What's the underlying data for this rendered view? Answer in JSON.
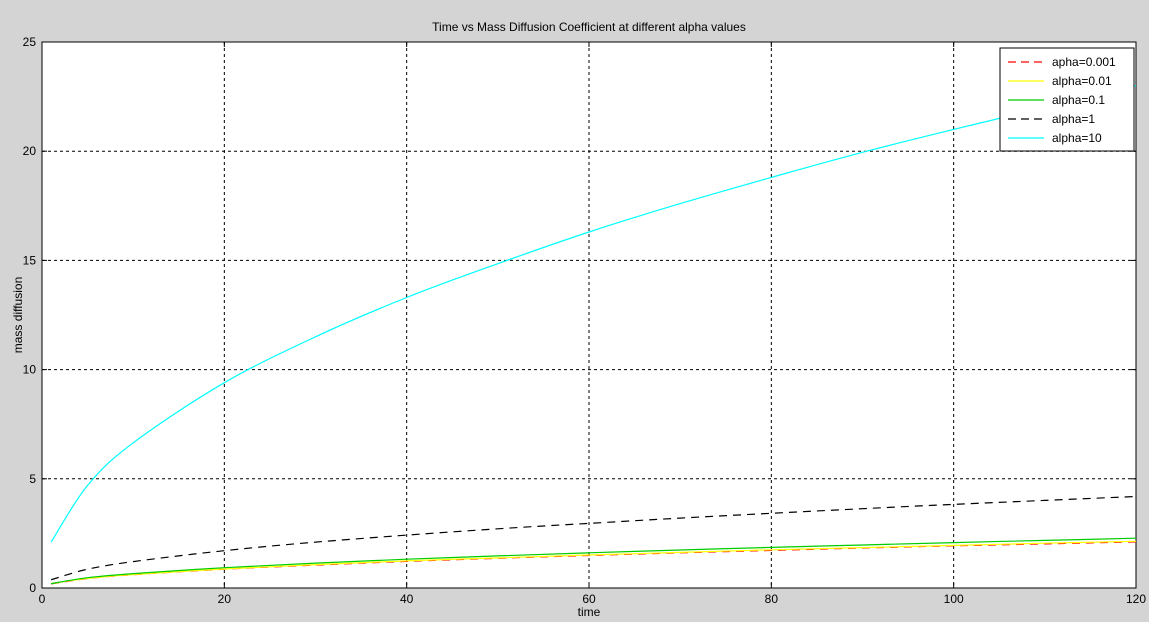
{
  "chart_data": {
    "type": "line",
    "title": "Time vs Mass Diffusion Coefficient at different alpha values",
    "xlabel": "time",
    "ylabel": "mass diffusion",
    "xlim": [
      0,
      120
    ],
    "ylim": [
      0,
      25
    ],
    "xticks": [
      0,
      20,
      40,
      60,
      80,
      100,
      120
    ],
    "yticks": [
      0,
      5,
      10,
      15,
      20,
      25
    ],
    "grid": true,
    "legend_position": "top-right",
    "x": [
      1,
      5,
      10,
      20,
      30,
      40,
      50,
      60,
      70,
      80,
      90,
      100,
      110,
      120
    ],
    "series": [
      {
        "name": "apha=0.001",
        "color": "#ff0000",
        "dash": "dashed",
        "values": [
          0.19,
          0.43,
          0.61,
          0.86,
          1.05,
          1.22,
          1.36,
          1.49,
          1.61,
          1.72,
          1.83,
          1.93,
          2.02,
          2.11
        ]
      },
      {
        "name": "alpha=0.01",
        "color": "#ffff00",
        "dash": "solid",
        "values": [
          0.2,
          0.44,
          0.62,
          0.87,
          1.07,
          1.24,
          1.38,
          1.51,
          1.63,
          1.75,
          1.85,
          1.95,
          2.05,
          2.14
        ]
      },
      {
        "name": "alpha=0.1",
        "color": "#00cc00",
        "dash": "solid",
        "values": [
          0.2,
          0.47,
          0.66,
          0.93,
          1.14,
          1.32,
          1.47,
          1.61,
          1.74,
          1.86,
          1.97,
          2.08,
          2.18,
          2.28
        ]
      },
      {
        "name": "alpha=1",
        "color": "#000000",
        "dash": "dashed",
        "values": [
          0.38,
          0.86,
          1.21,
          1.71,
          2.1,
          2.42,
          2.71,
          2.96,
          3.2,
          3.42,
          3.63,
          3.83,
          4.01,
          4.19
        ]
      },
      {
        "name": "alpha=10",
        "color": "#00ffff",
        "dash": "solid",
        "values": [
          2.1,
          4.7,
          6.65,
          9.4,
          11.5,
          13.3,
          14.85,
          16.3,
          17.6,
          18.8,
          19.95,
          21.0,
          22.0,
          23.0
        ]
      }
    ]
  }
}
